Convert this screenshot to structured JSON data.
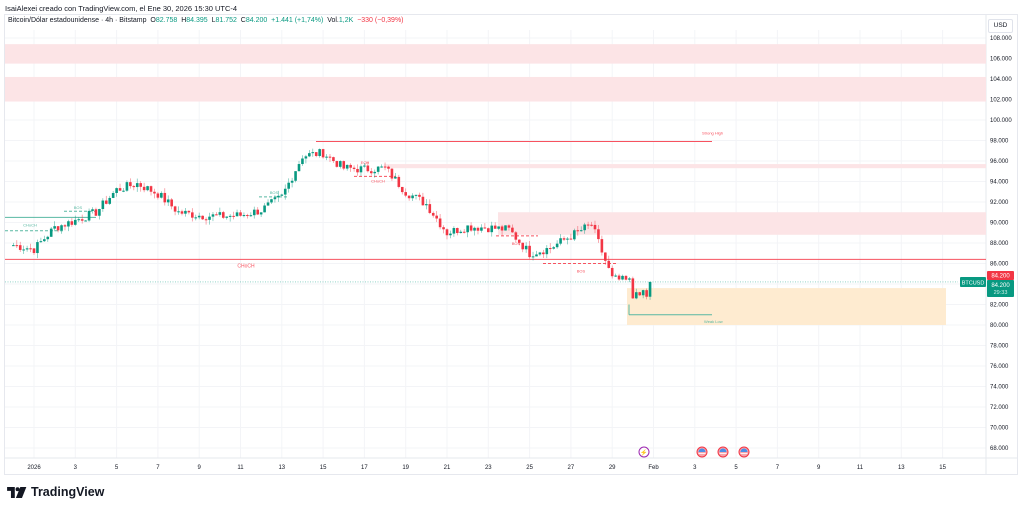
{
  "header": {
    "attribution": "IsaiAlexei creado con TradingView.com, el Ene 30, 2026 15:30 UTC-4",
    "symbol_desc": "Bitcoin/Dólar estadounidense · 4h · Bitstamp",
    "open_label": "O",
    "open": "82.758",
    "high_label": "H",
    "high": "84.395",
    "low_label": "L",
    "low": "81.752",
    "close_label": "C",
    "close": "84.200",
    "change": "+1.441 (+1,74%)",
    "vol_label": "Vol.",
    "volume": "1,2K",
    "vol_change": "−330 (−0,39%)"
  },
  "price_axis": {
    "currency": "USD",
    "labels": [
      "108.000",
      "106.000",
      "104.000",
      "102.000",
      "100.000",
      "98.000",
      "96.000",
      "94.000",
      "92.000",
      "90.000",
      "88.000",
      "86.000",
      "84.000",
      "82.000",
      "80.000",
      "78.000",
      "76.000",
      "74.000",
      "72.000",
      "70.000",
      "68.000"
    ],
    "last_price_red": "84.200",
    "last_price_green": "84.200",
    "countdown": "29:33",
    "symbol_tag": "BTCUSD"
  },
  "time_axis": {
    "labels": [
      "2026",
      "3",
      "5",
      "7",
      "9",
      "11",
      "13",
      "15",
      "17",
      "19",
      "21",
      "23",
      "25",
      "27",
      "29",
      "Feb",
      "3",
      "5",
      "7",
      "9",
      "11",
      "13",
      "15"
    ]
  },
  "brand": {
    "name": "TradingView"
  },
  "colors": {
    "up": "#089981",
    "down": "#f23645",
    "supply_zone": "#fce4e6",
    "demand_zone": "#feebd0",
    "choch_line": "#f7525f",
    "bos_line": "#58b8a2"
  },
  "chart_data": {
    "type": "candlestick",
    "title": "Bitcoin/Dólar estadounidense · 4h · Bitstamp",
    "xlabel": "",
    "ylabel": "USD",
    "ylim": [
      67000,
      109000
    ],
    "x_range": [
      "2025-12-31",
      "2026-02-16"
    ],
    "grid": true,
    "last_close": 84200,
    "ohlc_last": {
      "open": 82758,
      "high": 84395,
      "low": 81752,
      "close": 84200
    },
    "approx_close_path": [
      {
        "date": "2025-12-31",
        "price": 87800
      },
      {
        "date": "2026-01-01",
        "price": 87400
      },
      {
        "date": "2026-01-02",
        "price": 89500
      },
      {
        "date": "2026-01-03",
        "price": 90200
      },
      {
        "date": "2026-01-04",
        "price": 91000
      },
      {
        "date": "2026-01-05",
        "price": 93200
      },
      {
        "date": "2026-01-06",
        "price": 93800
      },
      {
        "date": "2026-01-07",
        "price": 92800
      },
      {
        "date": "2026-01-08",
        "price": 91000
      },
      {
        "date": "2026-01-09",
        "price": 90700
      },
      {
        "date": "2026-01-10",
        "price": 90600
      },
      {
        "date": "2026-01-11",
        "price": 90700
      },
      {
        "date": "2026-01-12",
        "price": 91200
      },
      {
        "date": "2026-01-13",
        "price": 92500
      },
      {
        "date": "2026-01-14",
        "price": 96500
      },
      {
        "date": "2026-01-15",
        "price": 96800
      },
      {
        "date": "2026-01-16",
        "price": 95300
      },
      {
        "date": "2026-01-17",
        "price": 95200
      },
      {
        "date": "2026-01-18",
        "price": 95300
      },
      {
        "date": "2026-01-19",
        "price": 93000
      },
      {
        "date": "2026-01-20",
        "price": 91800
      },
      {
        "date": "2026-01-21",
        "price": 89000
      },
      {
        "date": "2026-01-22",
        "price": 89600
      },
      {
        "date": "2026-01-23",
        "price": 89500
      },
      {
        "date": "2026-01-24",
        "price": 89300
      },
      {
        "date": "2026-01-25",
        "price": 87000
      },
      {
        "date": "2026-01-26",
        "price": 87500
      },
      {
        "date": "2026-01-27",
        "price": 88700
      },
      {
        "date": "2026-01-28",
        "price": 89800
      },
      {
        "date": "2026-01-29",
        "price": 84500
      },
      {
        "date": "2026-01-30",
        "price": 84200
      }
    ],
    "annotations": [
      {
        "type": "zone",
        "label": "supply",
        "from": 105500,
        "to": 107400
      },
      {
        "type": "zone",
        "label": "supply",
        "from": 101800,
        "to": 104200
      },
      {
        "type": "zone",
        "label": "supply",
        "from": 95300,
        "to": 95700
      },
      {
        "type": "zone",
        "label": "supply",
        "from": 88800,
        "to": 91000
      },
      {
        "type": "zone",
        "label": "demand",
        "from": 80000,
        "to": 83600
      },
      {
        "type": "line",
        "label": "Strong High",
        "price": 97900
      },
      {
        "type": "line",
        "label": "Weak Low",
        "price": 81000
      },
      {
        "type": "line",
        "label": "CHoCH",
        "price": 86400
      },
      {
        "type": "line",
        "label": "CHoCH",
        "price": 90500
      },
      {
        "type": "line",
        "label": "BOS",
        "price": 90700
      },
      {
        "type": "line",
        "label": "BOS",
        "price": 92500
      },
      {
        "type": "line",
        "label": "EQH",
        "price": 95200
      },
      {
        "type": "line",
        "label": "CHoCH",
        "price": 94500
      },
      {
        "type": "line",
        "label": "BOS",
        "price": 88700
      },
      {
        "type": "line",
        "label": "BOS",
        "price": 86000
      }
    ],
    "events": [
      {
        "date": "2026-01-30",
        "icon": "lightning"
      },
      {
        "date": "2026-02-02",
        "icon": "us-flag"
      },
      {
        "date": "2026-02-03",
        "icon": "us-flag"
      },
      {
        "date": "2026-02-04",
        "icon": "us-flag"
      }
    ]
  },
  "labels": {
    "strong_high": "Strong High",
    "weak_low": "Weak Low",
    "choch": "CHoCH",
    "bos": "BOS",
    "eqh": "EQH"
  }
}
